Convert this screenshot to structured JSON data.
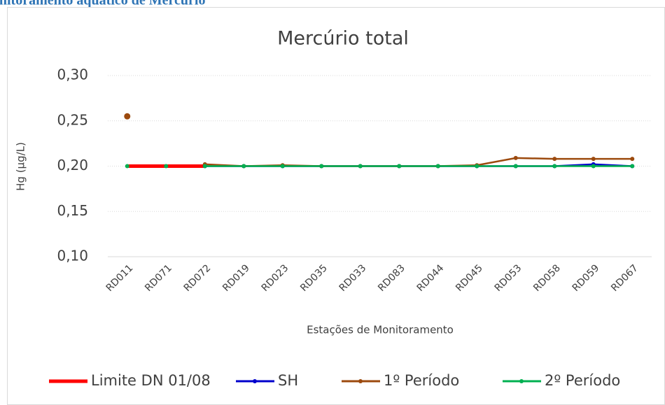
{
  "header": {
    "title": "Monitoramento aquático de Mercúrio"
  },
  "chart_data": {
    "type": "line",
    "title": "Mercúrio total",
    "y_label": "Hg (µg/L)",
    "x_label": "Estações de Monitoramento",
    "categories": [
      "RD011",
      "RD071",
      "RD072",
      "RD019",
      "RD023",
      "RD035",
      "RD033",
      "RD083",
      "RD044",
      "RD045",
      "RD053",
      "RD058",
      "RD059",
      "RD067"
    ],
    "series": [
      {
        "name": "Limite DN 01/08",
        "color": "#ff0000",
        "values": [
          0.2,
          0.2,
          0.2,
          null,
          null,
          null,
          null,
          null,
          null,
          null,
          null,
          null,
          null,
          null
        ]
      },
      {
        "name": "SH",
        "color": "#0000cc",
        "values": [
          null,
          null,
          0.2,
          0.2,
          0.2,
          0.2,
          0.2,
          0.2,
          0.2,
          0.2,
          0.2,
          0.2,
          0.202,
          0.2
        ]
      },
      {
        "name": "1º Período",
        "color": "#9c4a0e",
        "values": [
          0.255,
          null,
          0.202,
          0.2,
          0.201,
          0.2,
          0.2,
          0.2,
          0.2,
          0.201,
          0.209,
          0.208,
          0.208,
          0.208
        ]
      },
      {
        "name": "2º Período",
        "color": "#00b050",
        "values": [
          0.2,
          0.2,
          0.2,
          0.2,
          0.2,
          0.2,
          0.2,
          0.2,
          0.2,
          0.2,
          0.2,
          0.2,
          0.2,
          0.2
        ]
      }
    ],
    "ylim": [
      0.1,
      0.3
    ],
    "yticks": [
      {
        "value": 0.1,
        "label": "0,10"
      },
      {
        "value": 0.15,
        "label": "0,15"
      },
      {
        "value": 0.2,
        "label": "0,20"
      },
      {
        "value": 0.25,
        "label": "0,25"
      },
      {
        "value": 0.3,
        "label": "0,30"
      }
    ],
    "grid": true,
    "legend": "bottom"
  }
}
